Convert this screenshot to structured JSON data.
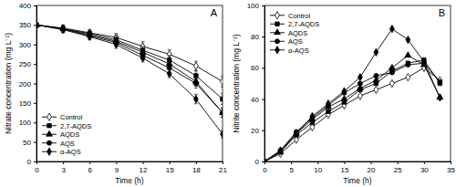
{
  "chart_data": [
    {
      "type": "line",
      "title": "A",
      "x_label": "Time (h)",
      "y_label": "Nitrate concentration (mg L⁻¹)",
      "x": [
        0,
        3,
        6,
        9,
        12,
        15,
        18,
        21
      ],
      "xlim": [
        0,
        21
      ],
      "xticks": [
        0,
        3,
        6,
        9,
        12,
        15,
        18,
        21
      ],
      "ylim": [
        0,
        400
      ],
      "yticks": [
        0,
        50,
        100,
        150,
        200,
        250,
        300,
        350,
        400
      ],
      "legend": "lower left",
      "series": [
        {
          "name": "Control",
          "color": "#000000",
          "marker": "diamond-open",
          "values": [
            350,
            342,
            330,
            318,
            295,
            275,
            245,
            205
          ],
          "errors": [
            6,
            8,
            8,
            10,
            12,
            12,
            12,
            14
          ]
        },
        {
          "name": "2,7-AQDS",
          "color": "#000000",
          "marker": "square",
          "values": [
            350,
            340,
            328,
            312,
            285,
            260,
            220,
            160
          ],
          "errors": [
            6,
            8,
            8,
            10,
            10,
            12,
            12,
            14
          ]
        },
        {
          "name": "AQDS",
          "color": "#000000",
          "marker": "triangle",
          "values": [
            350,
            340,
            325,
            308,
            280,
            250,
            205,
            125
          ],
          "errors": [
            6,
            8,
            8,
            10,
            10,
            10,
            12,
            12
          ]
        },
        {
          "name": "AQS",
          "color": "#000000",
          "marker": "circle",
          "values": [
            350,
            340,
            322,
            305,
            272,
            240,
            200,
            125
          ],
          "errors": [
            6,
            8,
            8,
            10,
            10,
            10,
            12,
            12
          ]
        },
        {
          "name": "α-AQS",
          "color": "#000000",
          "marker": "diamond",
          "values": [
            350,
            338,
            320,
            300,
            265,
            225,
            160,
            70
          ],
          "errors": [
            6,
            8,
            8,
            10,
            10,
            10,
            12,
            10
          ]
        }
      ]
    },
    {
      "type": "line",
      "title": "B",
      "x_label": "Time (h)",
      "y_label": "Nitrite concentration (mg L⁻¹)",
      "x": [
        0,
        3,
        6,
        9,
        12,
        15,
        18,
        21,
        24,
        27,
        30,
        33
      ],
      "xlim": [
        0,
        35
      ],
      "xticks": [
        0,
        5,
        10,
        15,
        20,
        25,
        30,
        35
      ],
      "ylim": [
        0,
        100
      ],
      "yticks": [
        0,
        20,
        40,
        60,
        80,
        100
      ],
      "legend": "upper left",
      "series": [
        {
          "name": "Control",
          "color": "#000000",
          "marker": "diamond-open",
          "values": [
            0,
            5,
            14,
            22,
            30,
            36,
            42,
            46,
            50,
            54,
            60,
            52
          ]
        },
        {
          "name": "2,7-AQDS",
          "color": "#000000",
          "marker": "square",
          "values": [
            0,
            6,
            17,
            25,
            32,
            38,
            46,
            50,
            58,
            63,
            65,
            50
          ]
        },
        {
          "name": "AQDS",
          "color": "#000000",
          "marker": "triangle",
          "values": [
            0,
            6,
            18,
            27,
            35,
            40,
            47,
            52,
            60,
            68,
            62,
            41
          ]
        },
        {
          "name": "AQS",
          "color": "#000000",
          "marker": "circle",
          "values": [
            0,
            7,
            19,
            28,
            36,
            44,
            50,
            55,
            57,
            62,
            63,
            51
          ]
        },
        {
          "name": "α-AQS",
          "color": "#000000",
          "marker": "diamond",
          "values": [
            0,
            7,
            18,
            29,
            37,
            45,
            54,
            70,
            85,
            78,
            64,
            41
          ]
        }
      ]
    }
  ]
}
